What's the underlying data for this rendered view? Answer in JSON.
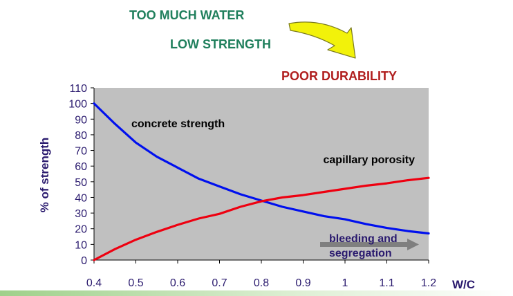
{
  "slide": {
    "line1": "TOO MUCH WATER",
    "line2": "LOW STRENGTH",
    "line3": "POOR DURABILITY"
  },
  "colors": {
    "heading_green": "#1f7f5c",
    "heading_red": "#b01e1e",
    "axis_text": "#2a1a6e",
    "plot_bg": "#c0c0c0",
    "series_strength": "#0010ee",
    "series_porosity": "#ee0010",
    "arrow_yellow": "#f2f20a",
    "annotation_arrow": "#7f7f7f"
  },
  "chart_data": {
    "type": "line",
    "xlabel": "W/C",
    "ylabel": "% of strength",
    "xlim": [
      0.4,
      1.2
    ],
    "ylim": [
      0,
      110
    ],
    "x_ticks": [
      "0.4",
      "0.5",
      "0.6",
      "0.7",
      "0.8",
      "0.9",
      "1",
      "1.1",
      "1.2"
    ],
    "y_ticks": [
      "0",
      "10",
      "20",
      "30",
      "40",
      "50",
      "60",
      "70",
      "80",
      "90",
      "100",
      "110"
    ],
    "grid": false,
    "series": [
      {
        "name": "concrete strength",
        "color": "#0010ee",
        "x": [
          0.4,
          0.45,
          0.5,
          0.55,
          0.6,
          0.65,
          0.7,
          0.75,
          0.8,
          0.85,
          0.9,
          0.95,
          1.0,
          1.05,
          1.1,
          1.15,
          1.2
        ],
        "y": [
          100,
          87,
          75,
          66,
          59,
          52,
          47,
          42,
          38,
          34,
          31,
          28,
          26,
          23,
          20.5,
          18.5,
          17
        ]
      },
      {
        "name": "capillary porosity",
        "color": "#ee0010",
        "x": [
          0.4,
          0.45,
          0.5,
          0.55,
          0.6,
          0.65,
          0.7,
          0.75,
          0.8,
          0.85,
          0.9,
          0.95,
          1.0,
          1.05,
          1.1,
          1.15,
          1.2
        ],
        "y": [
          0,
          7,
          13,
          18,
          22.5,
          26.5,
          29.5,
          34,
          37.5,
          40,
          41.5,
          43.5,
          45.5,
          47.5,
          49,
          51,
          52.5
        ]
      }
    ],
    "annotations": [
      {
        "text_lines": [
          "bleeding and",
          "segregation"
        ]
      }
    ]
  }
}
